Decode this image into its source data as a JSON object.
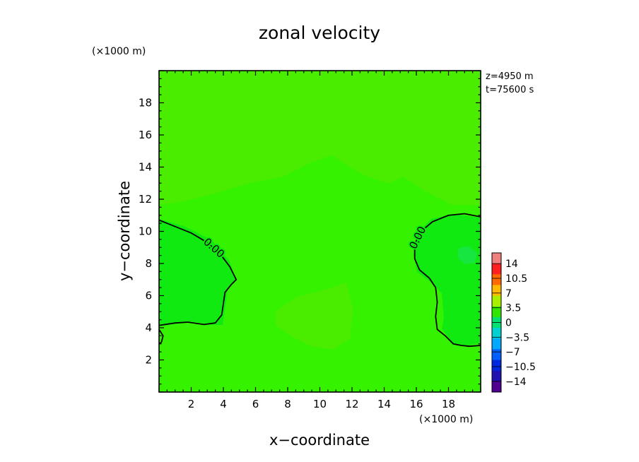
{
  "chart_data": {
    "type": "contour",
    "title": "zonal velocity",
    "xlabel": "x−coordinate",
    "ylabel": "y−coordinate",
    "x_unit": "(×1000 m)",
    "y_unit": "(×1000 m)",
    "xlim": [
      0,
      20
    ],
    "ylim": [
      0,
      20
    ],
    "x_ticks": [
      "2",
      "4",
      "6",
      "8",
      "10",
      "12",
      "14",
      "16",
      "18"
    ],
    "y_ticks": [
      "2",
      "4",
      "6",
      "8",
      "10",
      "12",
      "14",
      "16",
      "18"
    ],
    "info_lines": [
      "z=4950 m",
      "t=75600 s"
    ],
    "colorbar": {
      "labels": [
        "14",
        "10.5",
        "7",
        "3.5",
        "0",
        "−3.5",
        "−7",
        "−10.5",
        "−14"
      ],
      "colors": [
        "#f08080",
        "#ff2020",
        "#ff6a00",
        "#ffb800",
        "#a8f000",
        "#2fe600",
        "#00e070",
        "#00d0d0",
        "#00a8ff",
        "#0060ff",
        "#0028e0",
        "#2010b0",
        "#500090"
      ]
    },
    "field_colors": {
      "base": "#35f200",
      "positive_low": "#4aec00",
      "negative_low": "#10ea10",
      "negative_mid": "#18e640"
    },
    "contours": [
      {
        "level": "0.00",
        "points": [
          [
            0,
            10.7
          ],
          [
            1.0,
            10.3
          ],
          [
            2.0,
            9.9
          ],
          [
            3.0,
            9.3
          ],
          [
            3.8,
            8.6
          ],
          [
            4.4,
            7.8
          ],
          [
            4.8,
            7.0
          ],
          [
            4.5,
            6.7
          ],
          [
            4.1,
            6.2
          ],
          [
            4.0,
            5.5
          ],
          [
            3.9,
            4.8
          ],
          [
            3.5,
            4.3
          ],
          [
            2.8,
            4.2
          ],
          [
            1.8,
            4.35
          ],
          [
            1.0,
            4.3
          ],
          [
            0,
            4.15
          ]
        ]
      },
      {
        "level": "0.00",
        "points": [
          [
            20,
            10.9
          ],
          [
            19.0,
            11.1
          ],
          [
            18.0,
            11.0
          ],
          [
            17.0,
            10.6
          ],
          [
            16.3,
            10.0
          ],
          [
            15.9,
            9.2
          ],
          [
            15.9,
            8.3
          ],
          [
            16.2,
            7.6
          ],
          [
            16.8,
            7.1
          ],
          [
            17.2,
            6.5
          ],
          [
            17.3,
            5.6
          ],
          [
            17.2,
            4.7
          ],
          [
            17.3,
            3.9
          ],
          [
            17.8,
            3.5
          ],
          [
            18.3,
            3.0
          ],
          [
            18.8,
            2.9
          ],
          [
            19.3,
            2.85
          ],
          [
            20,
            2.9
          ]
        ]
      },
      {
        "level": "",
        "points": [
          [
            0,
            3.9
          ],
          [
            0.25,
            3.5
          ],
          [
            0.15,
            3.1
          ],
          [
            0,
            3.0
          ]
        ]
      }
    ]
  }
}
